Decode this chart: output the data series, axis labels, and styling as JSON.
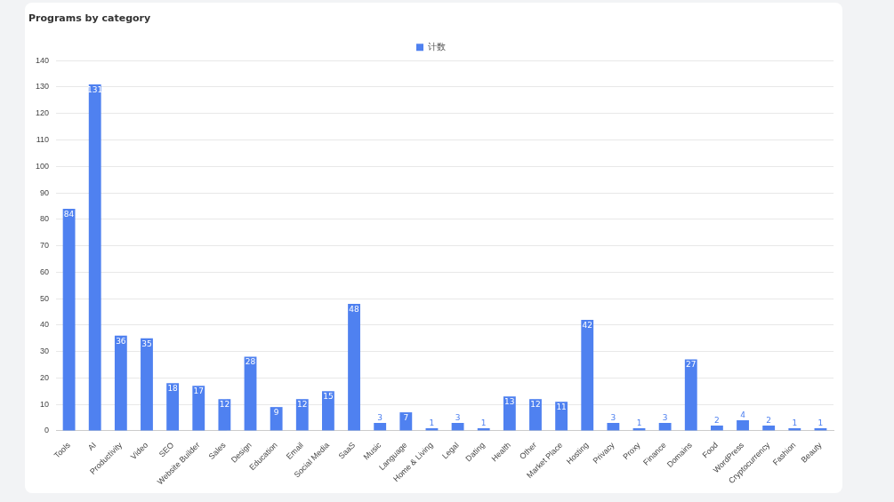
{
  "chart_data": {
    "type": "bar",
    "title": "Programs by category",
    "categories": [
      "Tools",
      "AI",
      "Productivity",
      "Video",
      "SEO",
      "Website Builder",
      "Sales",
      "Design",
      "Education",
      "Email",
      "Social Media",
      "SaaS",
      "Music",
      "Language",
      "Home & Living",
      "Legal",
      "Dating",
      "Health",
      "Other",
      "Market Place",
      "Hosting",
      "Privacy",
      "Proxy",
      "Finance",
      "Domains",
      "Food",
      "WordPress",
      "Cryptocurrency",
      "Fashion",
      "Beauty"
    ],
    "series": [
      {
        "name": "计数",
        "color": "#4f81f0",
        "values": [
          84,
          131,
          36,
          35,
          18,
          17,
          12,
          28,
          9,
          12,
          15,
          48,
          3,
          7,
          1,
          3,
          1,
          13,
          12,
          11,
          42,
          3,
          1,
          3,
          27,
          2,
          4,
          2,
          1,
          1
        ]
      }
    ],
    "ylim": [
      0,
      140
    ],
    "yticks": [
      0,
      10,
      20,
      30,
      40,
      50,
      60,
      70,
      80,
      90,
      100,
      110,
      120,
      130,
      140
    ],
    "grid": "y",
    "legend": "top",
    "data_labels": true
  }
}
